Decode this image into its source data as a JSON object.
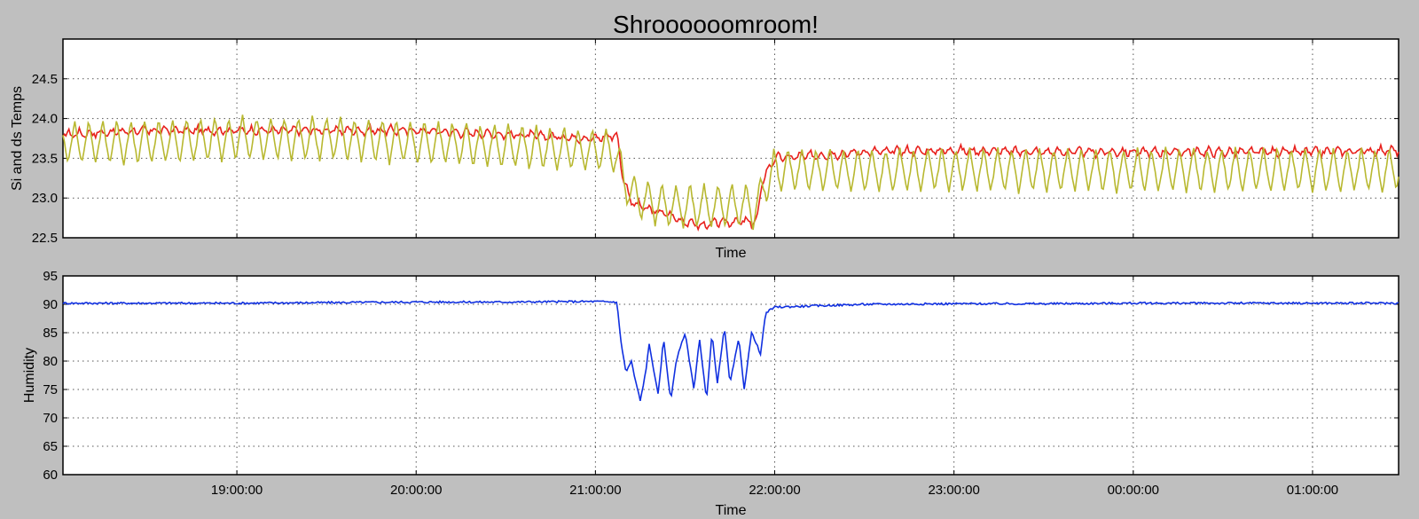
{
  "title": "Shroooooomroom!",
  "colors": {
    "background": "#bfbfbf",
    "si_temp": "#e8201c",
    "ds_temp": "#b8b830",
    "humidity": "#1030e0"
  },
  "chart_data": [
    {
      "type": "line",
      "xlabel": "Time",
      "ylabel": "Si and ds Temps",
      "xlim_hours": [
        18.03,
        25.48
      ],
      "ylim": [
        22.5,
        25.0
      ],
      "yticks": [
        22.5,
        23.0,
        23.5,
        24.0,
        24.5
      ],
      "yticks_labels": [
        "22.5",
        "23.0",
        "23.5",
        "24.0",
        "24.5"
      ],
      "xtick_labels_visible": false,
      "grid": true,
      "series": [
        {
          "color": "si_temp",
          "x": [
            18.03,
            18.5,
            19.0,
            19.5,
            20.0,
            20.5,
            21.0,
            21.12,
            21.15,
            21.2,
            21.3,
            21.4,
            21.5,
            21.6,
            21.7,
            21.8,
            21.9,
            21.93,
            21.96,
            22.0,
            22.5,
            23.0,
            23.5,
            24.0,
            24.5,
            25.0,
            25.48
          ],
          "y": [
            23.8,
            23.85,
            23.85,
            23.85,
            23.85,
            23.8,
            23.75,
            23.8,
            23.3,
            22.95,
            22.85,
            22.8,
            22.7,
            22.65,
            22.7,
            22.7,
            22.7,
            23.2,
            23.35,
            23.5,
            23.58,
            23.6,
            23.58,
            23.58,
            23.58,
            23.58,
            23.6
          ]
        },
        {
          "color": "ds_temp",
          "x": [
            18.03,
            18.5,
            19.0,
            19.5,
            20.0,
            20.5,
            21.0,
            21.1,
            21.13,
            21.2,
            21.3,
            21.4,
            21.5,
            21.6,
            21.7,
            21.8,
            21.9,
            21.95,
            22.0,
            22.5,
            23.0,
            23.5,
            24.0,
            24.5,
            25.0,
            25.48
          ],
          "y": [
            23.7,
            23.7,
            23.75,
            23.75,
            23.7,
            23.65,
            23.6,
            23.6,
            23.4,
            23.05,
            22.95,
            22.9,
            22.9,
            22.9,
            22.9,
            22.9,
            22.9,
            23.2,
            23.35,
            23.35,
            23.35,
            23.35,
            23.35,
            23.35,
            23.35,
            23.35
          ]
        }
      ]
    },
    {
      "type": "line",
      "xlabel": "Time",
      "ylabel": "Humidity",
      "xlim_hours": [
        18.03,
        25.48
      ],
      "ylim": [
        60,
        95
      ],
      "yticks": [
        60,
        65,
        70,
        75,
        80,
        85,
        90,
        95
      ],
      "yticks_labels": [
        "60",
        "65",
        "70",
        "75",
        "80",
        "85",
        "90",
        "95"
      ],
      "xticks_hours": [
        19,
        20,
        21,
        22,
        23,
        24,
        25
      ],
      "xticks_labels": [
        "19:00:00",
        "20:00:00",
        "21:00:00",
        "22:00:00",
        "23:00:00",
        "00:00:00",
        "01:00:00"
      ],
      "grid": true,
      "series": [
        {
          "color": "humidity",
          "x": [
            18.03,
            18.5,
            19.0,
            19.5,
            20.0,
            20.5,
            21.0,
            21.12,
            21.14,
            21.17,
            21.2,
            21.22,
            21.25,
            21.28,
            21.3,
            21.35,
            21.38,
            21.42,
            21.45,
            21.5,
            21.55,
            21.58,
            21.62,
            21.65,
            21.68,
            21.72,
            21.75,
            21.8,
            21.83,
            21.87,
            21.9,
            21.92,
            21.95,
            22.0,
            22.5,
            23.0,
            23.5,
            24.0,
            24.5,
            25.0,
            25.48
          ],
          "y": [
            90.2,
            90.2,
            90.2,
            90.3,
            90.4,
            90.4,
            90.5,
            90.4,
            84,
            78,
            80,
            77,
            73,
            78,
            83,
            74,
            84,
            73,
            80,
            85,
            75,
            84,
            73,
            85,
            76,
            86,
            76,
            84,
            75,
            85,
            83,
            81,
            88.5,
            89.5,
            90.0,
            90.1,
            90.1,
            90.2,
            90.2,
            90.2,
            90.2
          ]
        }
      ]
    }
  ]
}
